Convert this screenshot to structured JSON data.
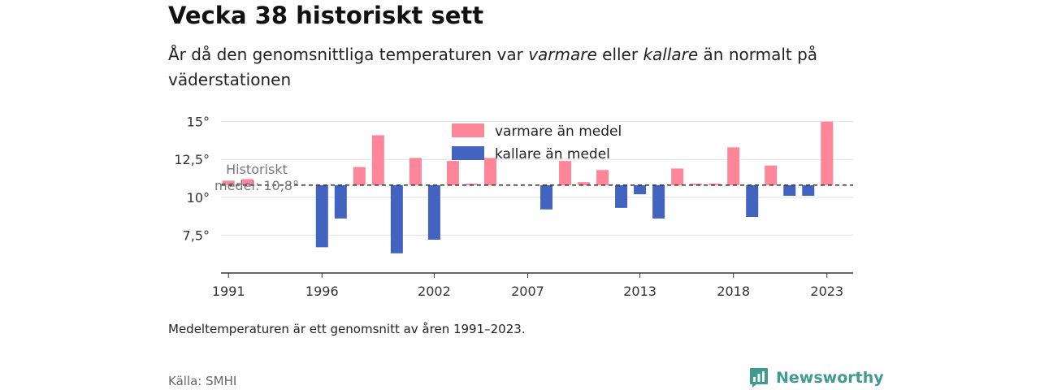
{
  "title": "Vecka 38 historiskt sett",
  "subtitle": {
    "part1": "År då den genomsnittliga temperaturen var ",
    "warmer_word": "varmare",
    "part2": " eller ",
    "colder_word": "kallare",
    "part3": " än normalt på väderstationen"
  },
  "note": "Medeltemperaturen är ett genomsnitt av åren 1991–2023.",
  "source": "Källa: SMHI",
  "brand": {
    "name": "Newsworthy",
    "color": "#3f9a91",
    "icon": "newsworthy-logo-icon"
  },
  "chart_data": {
    "type": "bar",
    "baseline": 10.8,
    "baseline_label_lines": [
      "Historiskt",
      "medel: 10,8°"
    ],
    "colors": {
      "warmer": "#ff8599",
      "colder": "#4263bf"
    },
    "legend": [
      {
        "key": "warmer",
        "label": "varmare än medel"
      },
      {
        "key": "colder",
        "label": "kallare än medel"
      }
    ],
    "legend_position": "top-center",
    "grid": true,
    "ylim": [
      5,
      16
    ],
    "yticks": [
      7.5,
      10,
      12.5,
      15
    ],
    "ytick_labels": [
      "7,5°",
      "10°",
      "12,5°",
      "15°"
    ],
    "xlim": [
      1990.6,
      2024.4
    ],
    "xticks": [
      1991,
      1996,
      2002,
      2007,
      2013,
      2018,
      2023
    ],
    "xtick_labels": [
      "1991",
      "1996",
      "2002",
      "2007",
      "2013",
      "2018",
      "2023"
    ],
    "x": [
      1991,
      1992,
      1993,
      1994,
      1995,
      1996,
      1997,
      1998,
      1999,
      2000,
      2001,
      2002,
      2003,
      2004,
      2005,
      2006,
      2007,
      2008,
      2009,
      2010,
      2011,
      2012,
      2013,
      2014,
      2015,
      2016,
      2017,
      2018,
      2019,
      2020,
      2021,
      2022,
      2023
    ],
    "values": [
      11.1,
      11.2,
      null,
      null,
      null,
      6.7,
      8.6,
      12.0,
      14.1,
      6.3,
      12.6,
      7.2,
      12.4,
      10.9,
      12.6,
      null,
      null,
      9.2,
      12.4,
      11.0,
      11.8,
      9.3,
      10.2,
      8.6,
      11.9,
      10.9,
      10.9,
      13.3,
      8.7,
      12.1,
      10.1,
      10.1,
      15.0
    ]
  }
}
